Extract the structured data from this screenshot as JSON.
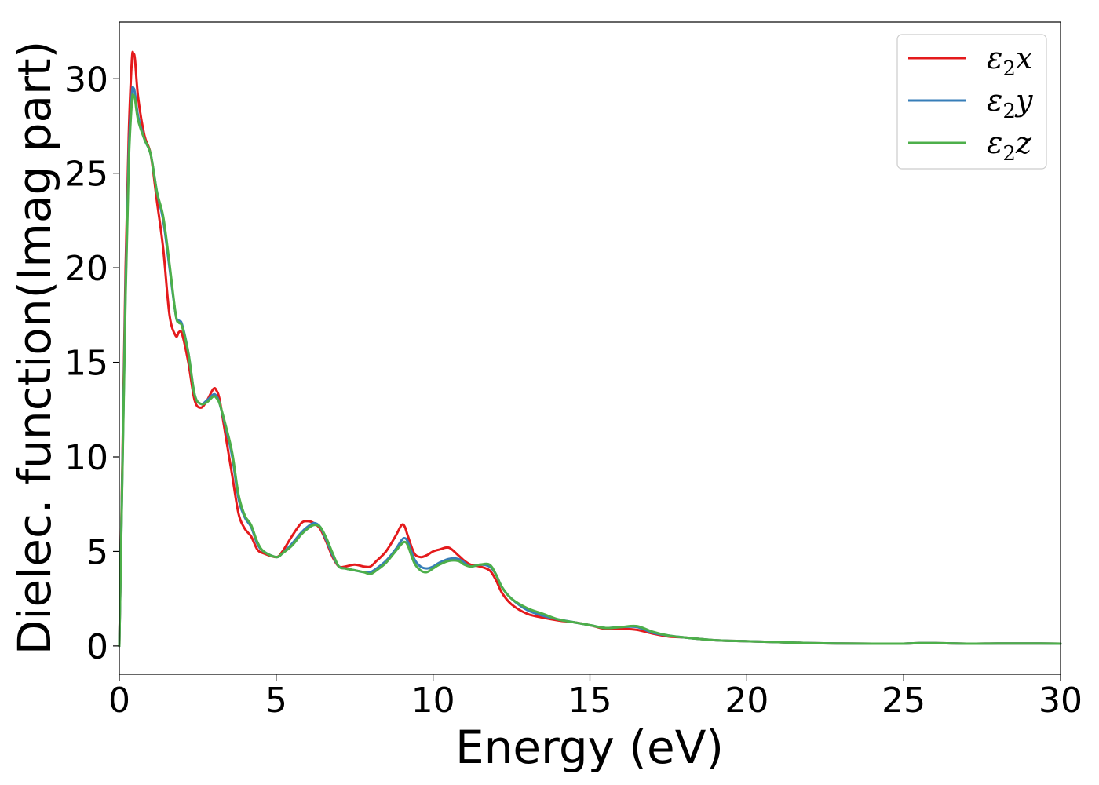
{
  "chart_data": {
    "type": "line",
    "title": "",
    "xlabel": "Energy (eV)",
    "ylabel": "Dielec. function(Imag part)",
    "xlim": [
      0,
      30
    ],
    "ylim": [
      -1.5,
      33
    ],
    "xticks": [
      "0",
      "5",
      "10",
      "15",
      "20",
      "25",
      "30"
    ],
    "yticks": [
      "0",
      "5",
      "10",
      "15",
      "20",
      "25",
      "30"
    ],
    "grid": false,
    "legend_position": "top-right",
    "series": [
      {
        "name": "ε2x",
        "label_main": "ε",
        "label_sub": "2",
        "label_end": "x",
        "color": "#e41a1c",
        "x": [
          0,
          0.1,
          0.2,
          0.3,
          0.4,
          0.45,
          0.5,
          0.6,
          0.8,
          1.0,
          1.2,
          1.4,
          1.6,
          1.8,
          1.9,
          2.0,
          2.2,
          2.4,
          2.6,
          2.8,
          3.0,
          3.1,
          3.2,
          3.4,
          3.6,
          3.8,
          4.0,
          4.2,
          4.4,
          4.6,
          5.0,
          5.2,
          5.5,
          5.8,
          6.0,
          6.2,
          6.4,
          6.6,
          6.8,
          7.0,
          7.2,
          7.5,
          7.8,
          8.0,
          8.2,
          8.5,
          8.8,
          9.0,
          9.1,
          9.2,
          9.4,
          9.6,
          9.8,
          10.0,
          10.2,
          10.5,
          10.8,
          11.0,
          11.2,
          11.5,
          11.8,
          12.0,
          12.2,
          12.5,
          13.0,
          13.5,
          14.0,
          14.5,
          15.0,
          15.5,
          16.0,
          16.5,
          17.0,
          17.5,
          18.0,
          19.0,
          20.0,
          21.0,
          22.0,
          23.0,
          24.0,
          25.0,
          25.5,
          26.0,
          27.0,
          28.0,
          29.0,
          30.0
        ],
        "y": [
          0,
          10,
          20,
          27,
          31,
          31.3,
          31.0,
          29.0,
          27.0,
          26.0,
          23.5,
          21.0,
          17.5,
          16.4,
          16.6,
          16.5,
          15.0,
          13.0,
          12.6,
          13.0,
          13.6,
          13.5,
          13.0,
          11.0,
          9.0,
          7.0,
          6.2,
          5.8,
          5.1,
          4.9,
          4.7,
          5.0,
          5.8,
          6.5,
          6.6,
          6.5,
          6.2,
          5.5,
          4.7,
          4.2,
          4.2,
          4.3,
          4.2,
          4.2,
          4.5,
          5.0,
          5.8,
          6.4,
          6.3,
          5.8,
          4.9,
          4.7,
          4.8,
          5.0,
          5.1,
          5.2,
          4.8,
          4.5,
          4.3,
          4.2,
          4.0,
          3.5,
          2.8,
          2.2,
          1.7,
          1.5,
          1.35,
          1.25,
          1.1,
          0.9,
          0.9,
          0.85,
          0.65,
          0.5,
          0.45,
          0.3,
          0.25,
          0.2,
          0.15,
          0.13,
          0.12,
          0.12,
          0.15,
          0.15,
          0.12,
          0.13,
          0.13,
          0.12
        ]
      },
      {
        "name": "ε2y",
        "label_main": "ε",
        "label_sub": "2",
        "label_end": "y",
        "color": "#377eb8",
        "x": [
          0,
          0.1,
          0.2,
          0.3,
          0.4,
          0.45,
          0.5,
          0.6,
          0.8,
          1.0,
          1.2,
          1.4,
          1.6,
          1.8,
          1.9,
          2.0,
          2.2,
          2.4,
          2.6,
          2.8,
          3.0,
          3.1,
          3.2,
          3.4,
          3.6,
          3.8,
          4.0,
          4.2,
          4.4,
          4.6,
          5.0,
          5.2,
          5.5,
          5.8,
          6.0,
          6.2,
          6.4,
          6.6,
          6.8,
          7.0,
          7.2,
          7.5,
          7.8,
          8.0,
          8.2,
          8.5,
          8.8,
          9.0,
          9.1,
          9.2,
          9.4,
          9.6,
          9.8,
          10.0,
          10.2,
          10.5,
          10.8,
          11.0,
          11.2,
          11.5,
          11.8,
          12.0,
          12.2,
          12.5,
          13.0,
          13.5,
          14.0,
          14.5,
          15.0,
          15.5,
          16.0,
          16.5,
          17.0,
          17.5,
          18.0,
          19.0,
          20.0,
          21.0,
          22.0,
          23.0,
          24.0,
          25.0,
          25.5,
          26.0,
          27.0,
          28.0,
          29.0,
          30.0
        ],
        "y": [
          0,
          9.5,
          19,
          26,
          29.2,
          29.5,
          29.2,
          28.0,
          26.8,
          26.0,
          24.0,
          22.5,
          20.0,
          17.5,
          17.2,
          17.0,
          15.5,
          13.3,
          12.8,
          13.0,
          13.3,
          13.2,
          12.8,
          11.5,
          10.0,
          7.8,
          6.8,
          6.3,
          5.4,
          5.0,
          4.7,
          4.9,
          5.4,
          6.0,
          6.3,
          6.5,
          6.3,
          5.6,
          4.8,
          4.2,
          4.1,
          4.0,
          3.9,
          3.9,
          4.1,
          4.5,
          5.1,
          5.6,
          5.7,
          5.5,
          4.6,
          4.2,
          4.1,
          4.2,
          4.4,
          4.6,
          4.6,
          4.4,
          4.2,
          4.3,
          4.2,
          3.8,
          3.1,
          2.5,
          1.9,
          1.6,
          1.4,
          1.25,
          1.1,
          0.95,
          1.0,
          1.0,
          0.7,
          0.55,
          0.45,
          0.3,
          0.25,
          0.2,
          0.15,
          0.13,
          0.12,
          0.12,
          0.15,
          0.15,
          0.12,
          0.13,
          0.13,
          0.12
        ]
      },
      {
        "name": "ε2z",
        "label_main": "ε",
        "label_sub": "2",
        "label_end": "z",
        "color": "#4daf4a",
        "x": [
          0,
          0.1,
          0.2,
          0.3,
          0.4,
          0.45,
          0.5,
          0.6,
          0.8,
          1.0,
          1.2,
          1.4,
          1.6,
          1.8,
          1.9,
          2.0,
          2.2,
          2.4,
          2.6,
          2.8,
          3.0,
          3.1,
          3.2,
          3.4,
          3.6,
          3.8,
          4.0,
          4.2,
          4.4,
          4.6,
          5.0,
          5.2,
          5.5,
          5.8,
          6.0,
          6.2,
          6.4,
          6.6,
          6.8,
          7.0,
          7.2,
          7.5,
          7.8,
          8.0,
          8.2,
          8.5,
          8.8,
          9.0,
          9.1,
          9.2,
          9.4,
          9.6,
          9.8,
          10.0,
          10.2,
          10.5,
          10.8,
          11.0,
          11.2,
          11.5,
          11.8,
          12.0,
          12.2,
          12.5,
          13.0,
          13.5,
          14.0,
          14.5,
          15.0,
          15.5,
          16.0,
          16.5,
          17.0,
          17.5,
          18.0,
          19.0,
          20.0,
          21.0,
          22.0,
          23.0,
          24.0,
          25.0,
          25.5,
          26.0,
          27.0,
          28.0,
          29.0,
          30.0
        ],
        "y": [
          0,
          9.3,
          18.5,
          25.5,
          28.8,
          29.1,
          28.9,
          27.8,
          26.8,
          26.0,
          24.0,
          22.7,
          20.2,
          17.5,
          17.1,
          16.9,
          15.5,
          13.3,
          12.8,
          12.9,
          13.2,
          13.1,
          12.8,
          11.6,
          10.2,
          8.0,
          6.9,
          6.4,
          5.5,
          5.0,
          4.7,
          4.9,
          5.3,
          5.9,
          6.2,
          6.4,
          6.3,
          5.7,
          4.9,
          4.2,
          4.1,
          4.0,
          3.9,
          3.8,
          4.0,
          4.4,
          5.0,
          5.4,
          5.5,
          5.3,
          4.4,
          4.0,
          3.9,
          4.1,
          4.3,
          4.5,
          4.5,
          4.3,
          4.2,
          4.3,
          4.3,
          3.8,
          3.1,
          2.5,
          2.0,
          1.7,
          1.4,
          1.25,
          1.1,
          0.95,
          1.0,
          1.05,
          0.75,
          0.55,
          0.45,
          0.3,
          0.25,
          0.2,
          0.15,
          0.13,
          0.12,
          0.12,
          0.15,
          0.15,
          0.12,
          0.13,
          0.13,
          0.12
        ]
      }
    ]
  }
}
